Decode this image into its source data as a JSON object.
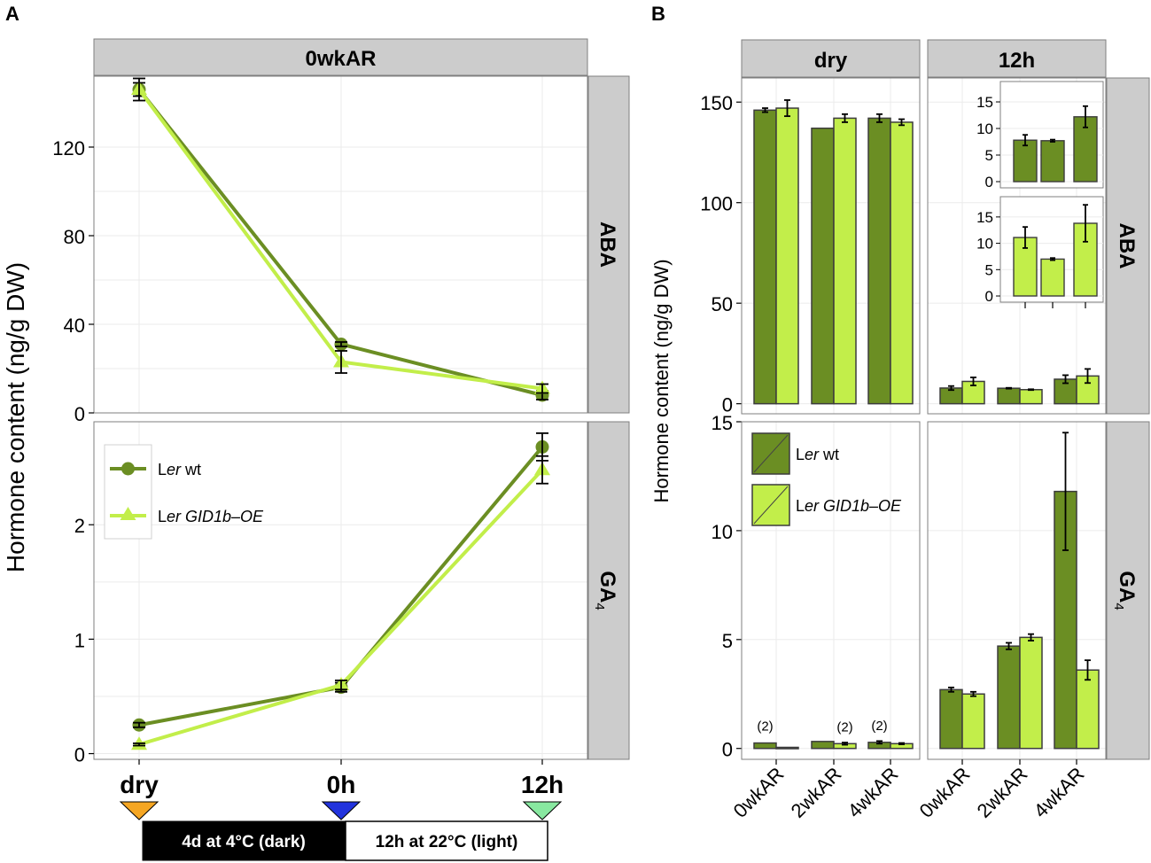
{
  "colors": {
    "wt": "#6b8e23",
    "oe": "#c2ee4a",
    "bar_border": "#3c3c3c",
    "strip_fill": "#cccccc",
    "marker_dry": "#f5a623",
    "marker_0h": "#2233dd",
    "marker_12h": "#88e8a0"
  },
  "chart_data": [
    {
      "id": "A",
      "panel_letter": "A",
      "type": "line",
      "column_strip": "0wkAR",
      "ylabel": "Hormone content (ng/g DW)",
      "categories": [
        "dry",
        "0h",
        "12h"
      ],
      "legend": {
        "wt_prefix": "L",
        "wt_italic": "er",
        "wt_suffix": " wt",
        "oe_prefix": "L",
        "oe_italic": "er GID1b–OE"
      },
      "facets": [
        {
          "row_strip": "ABA",
          "ylim": [
            0,
            152
          ],
          "yticks": [
            0,
            40,
            80,
            120
          ],
          "ytick_labels": [
            "0",
            "40",
            "80",
            "120"
          ],
          "series": [
            {
              "name": "Ler wt",
              "values": [
                146,
                31,
                8
              ],
              "errors": [
                3,
                1,
                2
              ]
            },
            {
              "name": "Ler GID1b-OE",
              "values": [
                146,
                23,
                11
              ],
              "errors": [
                5,
                5,
                2
              ]
            }
          ]
        },
        {
          "row_strip_main": "GA",
          "row_strip_sub": "4",
          "ylim": [
            -0.05,
            2.9
          ],
          "yticks": [
            0,
            1,
            2
          ],
          "ytick_labels": [
            "0",
            "1",
            "2"
          ],
          "series": [
            {
              "name": "Ler wt",
              "values": [
                0.25,
                0.58,
                2.68
              ],
              "errors": [
                0.02,
                0.04,
                0.12
              ]
            },
            {
              "name": "Ler GID1b-OE",
              "values": [
                0.08,
                0.6,
                2.48
              ],
              "errors": [
                0.01,
                0.04,
                0.12
              ]
            }
          ]
        }
      ],
      "timeline": {
        "dark_label": "4d at 4°C (dark)",
        "light_label": "12h at 22°C (light)"
      }
    },
    {
      "id": "B",
      "panel_letter": "B",
      "type": "bar",
      "ylabel": "Hormone content (ng/g DW)",
      "column_strips": [
        "dry",
        "12h"
      ],
      "categories": [
        "0wkAR",
        "2wkAR",
        "4wkAR"
      ],
      "legend": {
        "wt_prefix": "L",
        "wt_italic": "er",
        "wt_suffix": " wt",
        "oe_prefix": "L",
        "oe_italic": "er GID1b–OE"
      },
      "facets": [
        {
          "row_strip": "ABA",
          "ylim": [
            -5,
            162
          ],
          "yticks": [
            0,
            50,
            100,
            150
          ],
          "ytick_labels": [
            "0",
            "50",
            "100",
            "150"
          ],
          "columns": [
            {
              "series": [
                {
                  "name": "Ler wt",
                  "values": [
                    146,
                    137,
                    142
                  ],
                  "errors": [
                    1,
                    0,
                    2
                  ]
                },
                {
                  "name": "Ler GID1b-OE",
                  "values": [
                    147,
                    142,
                    140
                  ],
                  "errors": [
                    4,
                    2,
                    1.5
                  ]
                }
              ]
            },
            {
              "series": [
                {
                  "name": "Ler wt",
                  "values": [
                    7.8,
                    7.7,
                    12.2
                  ],
                  "errors": [
                    1,
                    0.2,
                    2
                  ]
                },
                {
                  "name": "Ler GID1b-OE",
                  "values": [
                    11.1,
                    7,
                    13.8
                  ],
                  "errors": [
                    2,
                    0.2,
                    3.5
                  ]
                }
              ]
            }
          ],
          "insets": [
            {
              "series": "Ler wt",
              "ylim": [
                -0.5,
                17.5
              ],
              "yticks": [
                0,
                5,
                10,
                15
              ],
              "ytick_labels": [
                "0",
                "5",
                "10",
                "15"
              ],
              "values": [
                7.8,
                7.7,
                12.2
              ],
              "errors": [
                1,
                0.2,
                2
              ]
            },
            {
              "series": "Ler GID1b-OE",
              "ylim": [
                -0.5,
                17.5
              ],
              "yticks": [
                0,
                5,
                10,
                15
              ],
              "ytick_labels": [
                "0",
                "5",
                "10",
                "15"
              ],
              "values": [
                11.1,
                7,
                13.8
              ],
              "errors": [
                2,
                0.2,
                3.5
              ]
            }
          ]
        },
        {
          "row_strip_main": "GA",
          "row_strip_sub": "4",
          "ylim": [
            -0.5,
            15
          ],
          "yticks": [
            0,
            5,
            10,
            15
          ],
          "ytick_labels": [
            "0",
            "5",
            "10",
            "15"
          ],
          "columns": [
            {
              "series": [
                {
                  "name": "Ler wt",
                  "values": [
                    0.25,
                    0.32,
                    0.28
                  ],
                  "errors": [
                    0,
                    0,
                    0.06
                  ]
                },
                {
                  "name": "Ler GID1b-OE",
                  "values": [
                    0.05,
                    0.22,
                    0.22
                  ],
                  "errors": [
                    0,
                    0.05,
                    0.03
                  ]
                }
              ],
              "annotations": [
                {
                  "category_index": 0,
                  "series_index": 0,
                  "text": "(2)"
                },
                {
                  "category_index": 1,
                  "series_index": 1,
                  "text": "(2)"
                },
                {
                  "category_index": 2,
                  "series_index": 0,
                  "text": "(2)"
                }
              ]
            },
            {
              "series": [
                {
                  "name": "Ler wt",
                  "values": [
                    2.7,
                    4.7,
                    11.8
                  ],
                  "errors": [
                    0.1,
                    0.15,
                    2.7
                  ]
                },
                {
                  "name": "Ler GID1b-OE",
                  "values": [
                    2.5,
                    5.1,
                    3.6
                  ],
                  "errors": [
                    0.1,
                    0.15,
                    0.45
                  ]
                }
              ]
            }
          ]
        }
      ]
    }
  ]
}
